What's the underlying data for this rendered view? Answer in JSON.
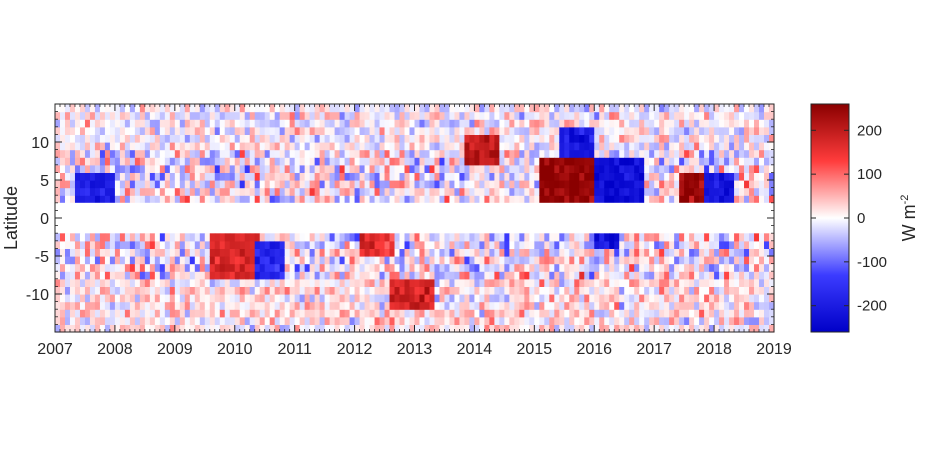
{
  "chart_data": {
    "type": "heatmap",
    "title": "",
    "xlabel": "",
    "ylabel": "Latitude",
    "x_range": [
      2007,
      2019
    ],
    "y_range": [
      -15,
      15
    ],
    "x_ticks": [
      2007,
      2008,
      2009,
      2010,
      2011,
      2012,
      2013,
      2014,
      2015,
      2016,
      2017,
      2018,
      2019
    ],
    "x_tick_labels": [
      "2007",
      "2008",
      "2009",
      "2010",
      "2011",
      "2012",
      "2013",
      "2014",
      "2015",
      "2016",
      "2017",
      "2018",
      "2019"
    ],
    "y_ticks": [
      -10,
      -5,
      0,
      5,
      10
    ],
    "y_tick_labels": [
      "-10",
      "-5",
      "0",
      "5",
      "10"
    ],
    "masked_latitude_band": [
      -2,
      2
    ],
    "colorbar": {
      "label": "W m",
      "label_superscript": "-2",
      "range": [
        -260,
        260
      ],
      "ticks": [
        -200,
        -100,
        0,
        100,
        200
      ],
      "tick_labels": [
        "-200",
        "-100",
        "0",
        "100",
        "200"
      ],
      "colormap": [
        "#00007a",
        "#0000ff",
        "#ffffff",
        "#ff0000",
        "#7a0000"
      ]
    },
    "grid": false,
    "notable_features": [
      {
        "x": [
          2015.1,
          2016.0
        ],
        "y": [
          2,
          8
        ],
        "value": 250
      },
      {
        "x": [
          2016.0,
          2016.8
        ],
        "y": [
          2,
          8
        ],
        "value": -230
      },
      {
        "x": [
          2017.4,
          2017.8
        ],
        "y": [
          2,
          6
        ],
        "value": 240
      },
      {
        "x": [
          2017.8,
          2018.3
        ],
        "y": [
          2,
          6
        ],
        "value": -210
      },
      {
        "x": [
          2007.3,
          2008.0
        ],
        "y": [
          2,
          6
        ],
        "value": -200
      },
      {
        "x": [
          2009.6,
          2010.4
        ],
        "y": [
          -8,
          -2
        ],
        "value": 170
      },
      {
        "x": [
          2010.3,
          2010.8
        ],
        "y": [
          -8,
          -3
        ],
        "value": -180
      },
      {
        "x": [
          2012.1,
          2012.7
        ],
        "y": [
          -5,
          -2
        ],
        "value": 160
      },
      {
        "x": [
          2012.6,
          2013.3
        ],
        "y": [
          -12,
          -8
        ],
        "value": 180
      },
      {
        "x": [
          2013.8,
          2014.4
        ],
        "y": [
          7,
          11
        ],
        "value": 200
      },
      {
        "x": [
          2015.4,
          2016.0
        ],
        "y": [
          8,
          12
        ],
        "value": -200
      },
      {
        "x": [
          2016.0,
          2016.4
        ],
        "y": [
          -4,
          -2
        ],
        "value": -220
      }
    ]
  }
}
